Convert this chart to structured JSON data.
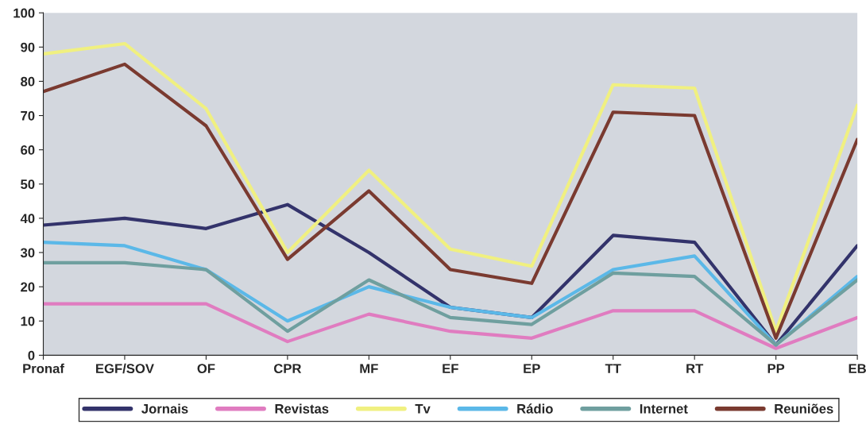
{
  "chart_data": {
    "type": "line",
    "categories": [
      "Pronaf",
      "EGF/SOV",
      "OF",
      "CPR",
      "MF",
      "EF",
      "EP",
      "TT",
      "RT",
      "PP",
      "EB"
    ],
    "series": [
      {
        "name": "Jornais",
        "color": "#33336b",
        "values": [
          38,
          40,
          37,
          44,
          30,
          14,
          11,
          35,
          33,
          3,
          32
        ]
      },
      {
        "name": "Revistas",
        "color": "#e07cc0",
        "values": [
          15,
          15,
          15,
          4,
          12,
          7,
          5,
          13,
          13,
          2,
          11
        ]
      },
      {
        "name": "Tv",
        "color": "#f0f080",
        "values": [
          88,
          91,
          72,
          30,
          54,
          31,
          26,
          79,
          78,
          7,
          73
        ]
      },
      {
        "name": "Rádio",
        "color": "#5bb8e8",
        "values": [
          33,
          32,
          25,
          10,
          20,
          14,
          11,
          25,
          29,
          3,
          23
        ]
      },
      {
        "name": "Internet",
        "color": "#6f9f9f",
        "values": [
          27,
          27,
          25,
          7,
          22,
          11,
          9,
          24,
          23,
          3,
          22
        ]
      },
      {
        "name": "Reuniões",
        "color": "#7a3a30",
        "values": [
          77,
          85,
          67,
          28,
          48,
          25,
          21,
          71,
          70,
          5,
          63
        ]
      }
    ],
    "ylim": [
      0,
      100
    ],
    "yticks": [
      0,
      10,
      20,
      30,
      40,
      50,
      60,
      70,
      80,
      90,
      100
    ],
    "grid": false,
    "legend": "bottom",
    "marker": "none",
    "line_style": "solid"
  }
}
